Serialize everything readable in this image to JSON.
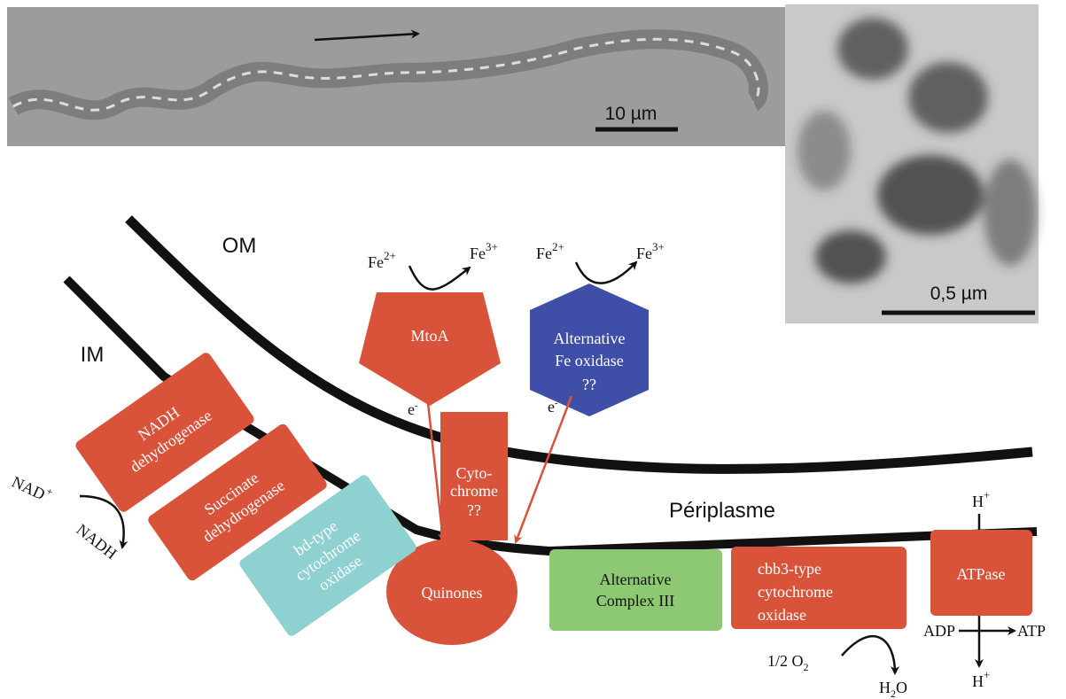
{
  "micrographs": {
    "filament_scale": "10 µm",
    "crystal_scale": "0,5 µm"
  },
  "membranes": {
    "outer": "OM",
    "inner": "IM",
    "periplasm": "Périplasme"
  },
  "iron_oxidation": [
    {
      "reduced": "Fe",
      "reduced_charge": "2+",
      "oxidized": "Fe",
      "oxidized_charge": "3+"
    },
    {
      "reduced": "Fe",
      "reduced_charge": "2+",
      "oxidized": "Fe",
      "oxidized_charge": "3+"
    }
  ],
  "electrons": [
    {
      "symbol": "e",
      "charge": "-"
    },
    {
      "symbol": "e",
      "charge": "-"
    }
  ],
  "proteins": {
    "mtoa": [
      "MtoA"
    ],
    "alt_fe_oxidase": [
      "Alternative",
      "Fe oxidase",
      "??"
    ],
    "nadh_dh": [
      "NADH",
      "dehydrogenase"
    ],
    "succinate_dh": [
      "Succinate",
      "dehydrogenase"
    ],
    "bd_oxidase": [
      "bd-type",
      "cytochrome",
      "oxidase"
    ],
    "cytochrome": [
      "Cyto-",
      "chrome",
      "??"
    ],
    "quinones": [
      "Quinones"
    ],
    "complex3": [
      "Alternative",
      "Complex III"
    ],
    "cbb3": [
      "cbb3-type",
      "cytochrome",
      "oxidase"
    ],
    "atpase": [
      "ATPase"
    ]
  },
  "reactions": {
    "nad_plus": {
      "base": "NAD",
      "sup": "+"
    },
    "nadh": "NADH",
    "oxygen": {
      "base": "1/2 O",
      "sub": "2"
    },
    "water": {
      "base": "H",
      "sub": "2",
      "end": "O"
    },
    "adp": "ADP",
    "atp": "ATP",
    "proton_out": {
      "base": "H",
      "sup": "+"
    },
    "proton_in": {
      "base": "H",
      "sup": "+"
    }
  }
}
